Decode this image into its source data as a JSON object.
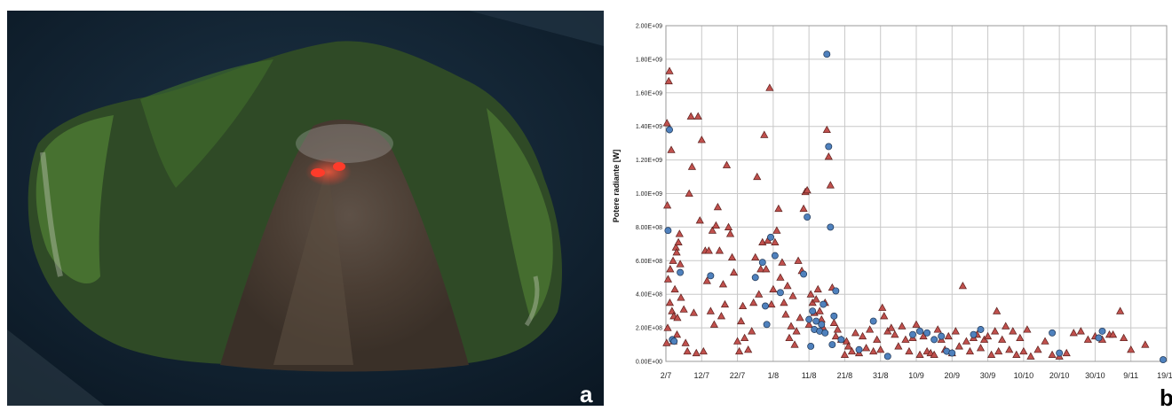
{
  "panels": {
    "left_letter": "a",
    "right_letter": "b"
  },
  "photo": {
    "subject": "island-volcano-aerial-image",
    "lava-color": "#ff3b2a"
  },
  "chart_data": {
    "type": "scatter",
    "ylabel": "Potere radiante [W]",
    "xlabel": "",
    "x_tick_labels": [
      "2/7",
      "12/7",
      "22/7",
      "1/8",
      "11/8",
      "21/8",
      "31/8",
      "10/9",
      "20/9",
      "30/9",
      "10/10",
      "20/10",
      "30/10",
      "9/11",
      "19/11"
    ],
    "y_tick_labels": [
      "0.00E+00",
      "2.00E+08",
      "4.00E+08",
      "6.00E+08",
      "8.00E+08",
      "1.00E+09",
      "1.20E+09",
      "1.40E+09",
      "1.60E+09",
      "1.80E+09",
      "2.00E+09"
    ],
    "xlim_days": [
      0,
      140
    ],
    "ylim": [
      0,
      2000000000
    ],
    "grid": true,
    "series": [
      {
        "marker": "triangle",
        "color": "#c0504d",
        "points": [
          [
            0.3,
            1420000000.0
          ],
          [
            0.8,
            1670000000.0
          ],
          [
            1.0,
            1730000000.0
          ],
          [
            1.5,
            1260000000.0
          ],
          [
            0.4,
            930000000.0
          ],
          [
            0.6,
            490000000.0
          ],
          [
            1.2,
            550000000.0
          ],
          [
            1.7,
            300000000.0
          ],
          [
            2.0,
            600000000.0
          ],
          [
            2.2,
            270000000.0
          ],
          [
            2.5,
            430000000.0
          ],
          [
            2.8,
            680000000.0
          ],
          [
            3.0,
            650000000.0
          ],
          [
            3.2,
            260000000.0
          ],
          [
            3.5,
            710000000.0
          ],
          [
            3.8,
            760000000.0
          ],
          [
            4.0,
            580000000.0
          ],
          [
            0.2,
            110000000.0
          ],
          [
            0.5,
            200000000.0
          ],
          [
            1.1,
            350000000.0
          ],
          [
            2.1,
            120000000.0
          ],
          [
            3.1,
            160000000.0
          ],
          [
            4.2,
            380000000.0
          ],
          [
            5.0,
            310000000.0
          ],
          [
            5.5,
            110000000.0
          ],
          [
            6.0,
            60000000.0
          ],
          [
            6.5,
            1000000000.0
          ],
          [
            7.0,
            1460000000.0
          ],
          [
            7.3,
            1160000000.0
          ],
          [
            7.8,
            290000000.0
          ],
          [
            8.5,
            50000000.0
          ],
          [
            9.0,
            1460000000.0
          ],
          [
            9.5,
            840000000.0
          ],
          [
            10.0,
            1320000000.0
          ],
          [
            10.5,
            60000000.0
          ],
          [
            11.0,
            660000000.0
          ],
          [
            11.5,
            480000000.0
          ],
          [
            12.0,
            660000000.0
          ],
          [
            12.5,
            300000000.0
          ],
          [
            13.0,
            780000000.0
          ],
          [
            13.5,
            220000000.0
          ],
          [
            14.0,
            810000000.0
          ],
          [
            14.5,
            920000000.0
          ],
          [
            15.0,
            660000000.0
          ],
          [
            15.5,
            270000000.0
          ],
          [
            16.0,
            460000000.0
          ],
          [
            16.5,
            340000000.0
          ],
          [
            17.0,
            1170000000.0
          ],
          [
            17.5,
            800000000.0
          ],
          [
            18.0,
            760000000.0
          ],
          [
            18.5,
            620000000.0
          ],
          [
            19.0,
            530000000.0
          ],
          [
            20.0,
            120000000.0
          ],
          [
            20.5,
            60000000.0
          ],
          [
            21.0,
            240000000.0
          ],
          [
            21.5,
            330000000.0
          ],
          [
            22.0,
            140000000.0
          ],
          [
            23.0,
            70000000.0
          ],
          [
            24.0,
            180000000.0
          ],
          [
            24.5,
            350000000.0
          ],
          [
            25.0,
            620000000.0
          ],
          [
            25.5,
            1100000000.0
          ],
          [
            26.0,
            400000000.0
          ],
          [
            26.5,
            550000000.0
          ],
          [
            27.0,
            710000000.0
          ],
          [
            27.5,
            1350000000.0
          ],
          [
            28.0,
            550000000.0
          ],
          [
            28.5,
            720000000.0
          ],
          [
            29.0,
            1630000000.0
          ],
          [
            29.5,
            340000000.0
          ],
          [
            30.0,
            430000000.0
          ],
          [
            30.5,
            710000000.0
          ],
          [
            31.0,
            780000000.0
          ],
          [
            31.5,
            910000000.0
          ],
          [
            32.0,
            500000000.0
          ],
          [
            32.5,
            590000000.0
          ],
          [
            33.0,
            350000000.0
          ],
          [
            33.5,
            280000000.0
          ],
          [
            34.0,
            450000000.0
          ],
          [
            34.5,
            140000000.0
          ],
          [
            35.0,
            210000000.0
          ],
          [
            35.5,
            390000000.0
          ],
          [
            36.0,
            100000000.0
          ],
          [
            36.5,
            180000000.0
          ],
          [
            37.0,
            600000000.0
          ],
          [
            37.5,
            260000000.0
          ],
          [
            38.0,
            540000000.0
          ],
          [
            38.5,
            910000000.0
          ],
          [
            39.0,
            1010000000.0
          ],
          [
            39.5,
            1020000000.0
          ],
          [
            40.0,
            220000000.0
          ],
          [
            40.5,
            400000000.0
          ],
          [
            41.0,
            350000000.0
          ],
          [
            41.5,
            290000000.0
          ],
          [
            42.0,
            370000000.0
          ],
          [
            42.5,
            430000000.0
          ],
          [
            43.0,
            300000000.0
          ],
          [
            43.5,
            250000000.0
          ],
          [
            44.0,
            200000000.0
          ],
          [
            44.5,
            350000000.0
          ],
          [
            45.0,
            1380000000.0
          ],
          [
            45.5,
            1220000000.0
          ],
          [
            46.0,
            1050000000.0
          ],
          [
            46.5,
            440000000.0
          ],
          [
            47.0,
            230000000.0
          ],
          [
            47.5,
            150000000.0
          ],
          [
            48.0,
            190000000.0
          ],
          [
            49.0,
            130000000.0
          ],
          [
            50.0,
            40000000.0
          ],
          [
            50.5,
            120000000.0
          ],
          [
            51.0,
            90000000.0
          ],
          [
            52.0,
            60000000.0
          ],
          [
            53.0,
            170000000.0
          ],
          [
            54.0,
            50000000.0
          ],
          [
            55.0,
            150000000.0
          ],
          [
            56.0,
            80000000.0
          ],
          [
            57.0,
            190000000.0
          ],
          [
            58.0,
            60000000.0
          ],
          [
            59.0,
            130000000.0
          ],
          [
            60.0,
            70000000.0
          ],
          [
            60.5,
            320000000.0
          ],
          [
            61.0,
            270000000.0
          ],
          [
            62.0,
            180000000.0
          ],
          [
            63.0,
            200000000.0
          ],
          [
            64.0,
            160000000.0
          ],
          [
            65.0,
            90000000.0
          ],
          [
            66.0,
            210000000.0
          ],
          [
            67.0,
            130000000.0
          ],
          [
            68.0,
            60000000.0
          ],
          [
            69.0,
            140000000.0
          ],
          [
            70.0,
            220000000.0
          ],
          [
            71.0,
            40000000.0
          ],
          [
            72.0,
            150000000.0
          ],
          [
            73.0,
            60000000.0
          ],
          [
            74.0,
            50000000.0
          ],
          [
            75.0,
            40000000.0
          ],
          [
            76.0,
            190000000.0
          ],
          [
            77.0,
            130000000.0
          ],
          [
            78.0,
            70000000.0
          ],
          [
            79.0,
            150000000.0
          ],
          [
            80.0,
            50000000.0
          ],
          [
            81.0,
            180000000.0
          ],
          [
            82.0,
            90000000.0
          ],
          [
            83.0,
            450000000.0
          ],
          [
            84.0,
            120000000.0
          ],
          [
            85.0,
            60000000.0
          ],
          [
            86.0,
            140000000.0
          ],
          [
            87.0,
            160000000.0
          ],
          [
            88.0,
            80000000.0
          ],
          [
            89.0,
            130000000.0
          ],
          [
            90.0,
            150000000.0
          ],
          [
            91.0,
            40000000.0
          ],
          [
            92.0,
            180000000.0
          ],
          [
            92.5,
            300000000.0
          ],
          [
            93.0,
            60000000.0
          ],
          [
            94.0,
            130000000.0
          ],
          [
            95.0,
            210000000.0
          ],
          [
            96.0,
            70000000.0
          ],
          [
            97.0,
            180000000.0
          ],
          [
            98.0,
            40000000.0
          ],
          [
            99.0,
            140000000.0
          ],
          [
            100.0,
            60000000.0
          ],
          [
            101.0,
            190000000.0
          ],
          [
            102.0,
            30000000.0
          ],
          [
            104.0,
            70000000.0
          ],
          [
            106.0,
            120000000.0
          ],
          [
            108.0,
            40000000.0
          ],
          [
            110.0,
            30000000.0
          ],
          [
            112.0,
            50000000.0
          ],
          [
            114.0,
            170000000.0
          ],
          [
            116.0,
            180000000.0
          ],
          [
            118.0,
            130000000.0
          ],
          [
            120.0,
            150000000.0
          ],
          [
            122.0,
            130000000.0
          ],
          [
            124.0,
            160000000.0
          ],
          [
            125.0,
            160000000.0
          ],
          [
            127.0,
            300000000.0
          ],
          [
            128.0,
            140000000.0
          ],
          [
            130.0,
            70000000.0
          ],
          [
            134.0,
            100000000.0
          ]
        ]
      },
      {
        "marker": "circle",
        "color": "#4f81bd",
        "points": [
          [
            0.6,
            780000000.0
          ],
          [
            1.0,
            1380000000.0
          ],
          [
            1.8,
            130000000.0
          ],
          [
            2.3,
            120000000.0
          ],
          [
            4.0,
            530000000.0
          ],
          [
            12.5,
            510000000.0
          ],
          [
            25.0,
            500000000.0
          ],
          [
            27.0,
            590000000.0
          ],
          [
            27.8,
            330000000.0
          ],
          [
            28.2,
            220000000.0
          ],
          [
            29.3,
            740000000.0
          ],
          [
            30.5,
            630000000.0
          ],
          [
            32.0,
            410000000.0
          ],
          [
            38.5,
            520000000.0
          ],
          [
            39.5,
            860000000.0
          ],
          [
            40.0,
            250000000.0
          ],
          [
            40.5,
            90000000.0
          ],
          [
            41.0,
            300000000.0
          ],
          [
            41.5,
            190000000.0
          ],
          [
            42.0,
            240000000.0
          ],
          [
            43.0,
            180000000.0
          ],
          [
            43.5,
            220000000.0
          ],
          [
            44.0,
            340000000.0
          ],
          [
            44.5,
            170000000.0
          ],
          [
            45.0,
            1830000000.0
          ],
          [
            45.5,
            1280000000.0
          ],
          [
            46.0,
            800000000.0
          ],
          [
            46.5,
            100000000.0
          ],
          [
            47.0,
            270000000.0
          ],
          [
            47.5,
            420000000.0
          ],
          [
            49.0,
            130000000.0
          ],
          [
            54.0,
            70000000.0
          ],
          [
            58.0,
            240000000.0
          ],
          [
            62.0,
            30000000.0
          ],
          [
            69.0,
            160000000.0
          ],
          [
            71.0,
            180000000.0
          ],
          [
            73.0,
            170000000.0
          ],
          [
            75.0,
            130000000.0
          ],
          [
            77.0,
            150000000.0
          ],
          [
            78.5,
            60000000.0
          ],
          [
            80.0,
            50000000.0
          ],
          [
            86.0,
            160000000.0
          ],
          [
            88.0,
            190000000.0
          ],
          [
            108.0,
            170000000.0
          ],
          [
            110.0,
            50000000.0
          ],
          [
            121.0,
            140000000.0
          ],
          [
            122.0,
            180000000.0
          ],
          [
            139.0,
            10000000.0
          ]
        ]
      }
    ]
  }
}
